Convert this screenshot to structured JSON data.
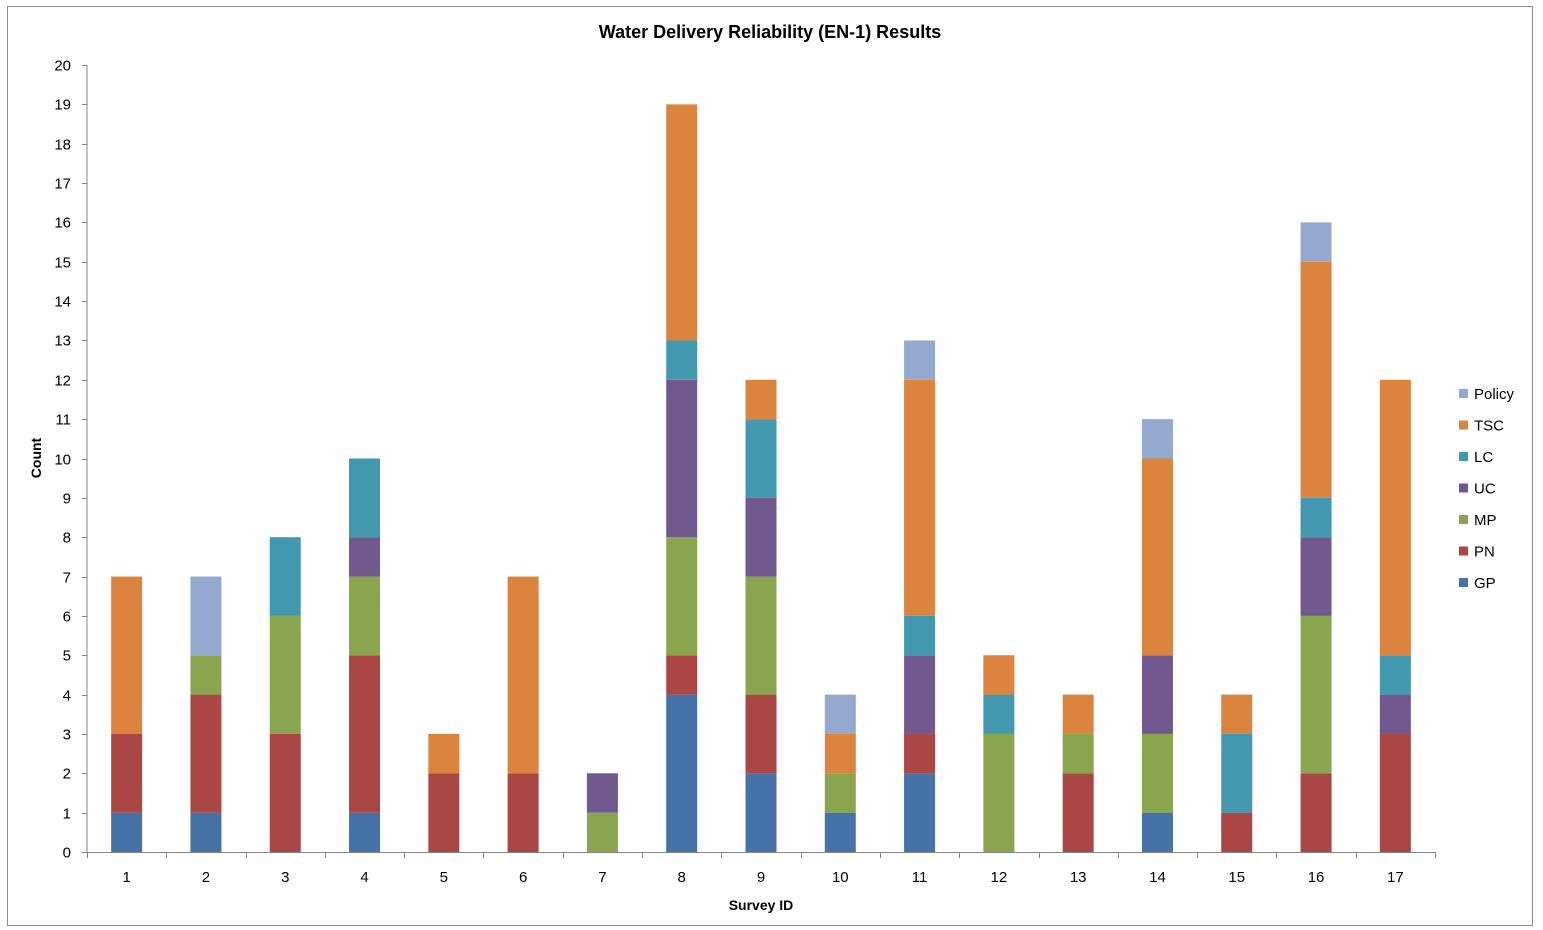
{
  "chart_data": {
    "type": "bar",
    "stacked": true,
    "title": "Water Delivery Reliability (EN-1) Results",
    "xlabel": "Survey ID",
    "ylabel": "Count",
    "ylim": [
      0,
      20
    ],
    "yticks": [
      0,
      1,
      2,
      3,
      4,
      5,
      6,
      7,
      8,
      9,
      10,
      11,
      12,
      13,
      14,
      15,
      16,
      17,
      18,
      19,
      20
    ],
    "grid": false,
    "legend_position": "right",
    "categories": [
      "1",
      "2",
      "3",
      "4",
      "5",
      "6",
      "7",
      "8",
      "9",
      "10",
      "11",
      "12",
      "13",
      "14",
      "15",
      "16",
      "17"
    ],
    "series": [
      {
        "name": "GP",
        "color": "#4572A7",
        "values": [
          1,
          1,
          0,
          1,
          0,
          0,
          0,
          4,
          2,
          1,
          2,
          0,
          0,
          1,
          0,
          0,
          0
        ]
      },
      {
        "name": "PN",
        "color": "#AA4643",
        "values": [
          2,
          3,
          3,
          4,
          2,
          2,
          0,
          1,
          2,
          0,
          1,
          0,
          2,
          0,
          1,
          2,
          3
        ]
      },
      {
        "name": "MP",
        "color": "#89A54E",
        "values": [
          0,
          1,
          3,
          2,
          0,
          0,
          1,
          3,
          3,
          1,
          0,
          3,
          1,
          2,
          0,
          4,
          0
        ]
      },
      {
        "name": "UC",
        "color": "#71588F",
        "values": [
          0,
          0,
          0,
          1,
          0,
          0,
          1,
          4,
          2,
          0,
          2,
          0,
          0,
          2,
          0,
          2,
          1
        ]
      },
      {
        "name": "LC",
        "color": "#4198AF",
        "values": [
          0,
          0,
          2,
          2,
          0,
          0,
          0,
          1,
          2,
          0,
          1,
          1,
          0,
          0,
          2,
          1,
          1
        ]
      },
      {
        "name": "TSC",
        "color": "#DB843D",
        "values": [
          4,
          0,
          0,
          0,
          1,
          5,
          0,
          6,
          1,
          1,
          6,
          1,
          1,
          5,
          1,
          6,
          7
        ]
      },
      {
        "name": "Policy",
        "color": "#93A9CF",
        "values": [
          0,
          2,
          0,
          0,
          0,
          0,
          0,
          0,
          0,
          1,
          1,
          0,
          0,
          1,
          0,
          1,
          0
        ]
      }
    ]
  }
}
